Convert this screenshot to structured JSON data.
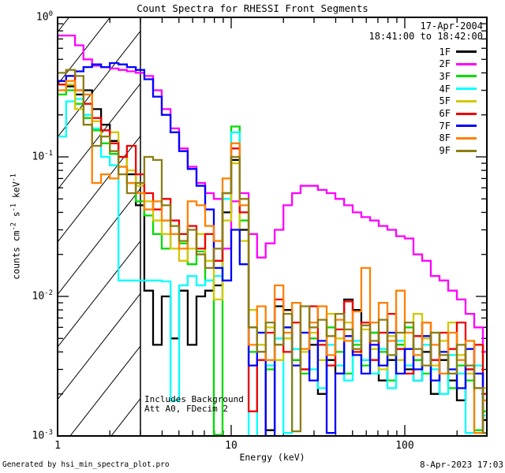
{
  "title": "Count Spectra for RHESSI Front Segments",
  "header": {
    "date_line1": "17-Apr-2004",
    "date_line2": "18:41:00 to 18:42:00"
  },
  "annotation": {
    "line1": "Includes Background",
    "line2": "Att A0, FDecim 2"
  },
  "footer": {
    "left": "Generated by hsi_min_spectra_plot.pro",
    "right": "8-Apr-2023 17:03"
  },
  "axes": {
    "xlabel": "Energy (keV)",
    "ylabel_parts": [
      {
        "text": "counts cm"
      },
      {
        "sup": "-2"
      },
      {
        "text": " s"
      },
      {
        "sup": "-1"
      },
      {
        "text": " keV"
      },
      {
        "sup": "-1"
      }
    ],
    "x_tick_labels": [
      "1",
      "10",
      "100"
    ],
    "y_tick_labels": [
      {
        "base": "10",
        "exp": "0"
      },
      {
        "base": "10",
        "exp": "-1"
      },
      {
        "base": "10",
        "exp": "-2"
      },
      {
        "base": "10",
        "exp": "-3"
      }
    ]
  },
  "chart_data": {
    "type": "line",
    "subtype": "log-log step histogram spectra",
    "title": "Count Spectra for RHESSI Front Segments",
    "xlabel": "Energy (keV)",
    "ylabel": "counts cm^-2 s^-1 keV^-1",
    "xlim": [
      1,
      297
    ],
    "ylim": [
      0.001,
      1
    ],
    "grid": false,
    "legend_position": "top-right",
    "x_major_ticks": [
      1,
      10,
      100
    ],
    "y_major_ticks": [
      1,
      0.1,
      0.01,
      0.001
    ],
    "hatched_region_keV": [
      1,
      3
    ],
    "energies_keV": [
      1.0,
      1.12,
      1.26,
      1.41,
      1.58,
      1.78,
      2.0,
      2.24,
      2.51,
      2.82,
      3.16,
      3.55,
      3.98,
      4.47,
      5.01,
      5.62,
      6.31,
      7.08,
      7.94,
      8.91,
      10.0,
      11.2,
      12.6,
      14.1,
      15.8,
      17.8,
      20.0,
      22.4,
      25.1,
      28.2,
      31.6,
      35.5,
      39.8,
      44.7,
      50.1,
      56.2,
      63.1,
      70.8,
      79.4,
      89.1,
      100.0,
      112.2,
      125.9,
      141.3,
      158.5,
      177.8,
      199.5,
      223.9,
      251.2,
      281.8
    ],
    "series": [
      {
        "name": "1F",
        "color": "#000000",
        "values": [
          0.35,
          0.32,
          0.28,
          0.3,
          0.22,
          0.17,
          0.13,
          0.1,
          0.075,
          0.045,
          0.011,
          0.0045,
          0.01,
          0.005,
          0.011,
          0.0045,
          0.01,
          0.011,
          0.012,
          0.04,
          0.095,
          0.03,
          0.006,
          0.004,
          0.0011,
          0.0085,
          0.008,
          0.0035,
          0.003,
          0.0045,
          0.002,
          0.0035,
          0.0028,
          0.0095,
          0.008,
          0.0035,
          0.0055,
          0.0025,
          0.0035,
          0.0045,
          0.003,
          0.0025,
          0.004,
          0.002,
          0.0035,
          0.0025,
          0.0018,
          0.003,
          0.0022,
          0.0013
        ]
      },
      {
        "name": "2F",
        "color": "#FF00FF",
        "values": [
          0.74,
          0.74,
          0.63,
          0.5,
          0.45,
          0.44,
          0.43,
          0.42,
          0.41,
          0.4,
          0.38,
          0.3,
          0.22,
          0.16,
          0.115,
          0.085,
          0.065,
          0.055,
          0.05,
          0.022,
          0.048,
          0.055,
          0.028,
          0.019,
          0.024,
          0.03,
          0.045,
          0.055,
          0.062,
          0.062,
          0.058,
          0.055,
          0.05,
          0.045,
          0.04,
          0.037,
          0.035,
          0.032,
          0.03,
          0.027,
          0.026,
          0.02,
          0.018,
          0.014,
          0.013,
          0.011,
          0.0095,
          0.0075,
          0.006,
          0.004
        ]
      },
      {
        "name": "3F",
        "color": "#00DC00",
        "values": [
          0.28,
          0.3,
          0.24,
          0.19,
          0.155,
          0.125,
          0.105,
          0.085,
          0.065,
          0.048,
          0.038,
          0.028,
          0.022,
          0.032,
          0.024,
          0.017,
          0.021,
          0.013,
          0.00102,
          0.055,
          0.165,
          0.035,
          0.004,
          0.0055,
          0.003,
          0.0045,
          0.006,
          0.0035,
          0.0028,
          0.005,
          0.0035,
          0.006,
          0.004,
          0.0028,
          0.0045,
          0.0032,
          0.0055,
          0.004,
          0.0025,
          0.0045,
          0.006,
          0.0035,
          0.0028,
          0.0055,
          0.004,
          0.0022,
          0.0032,
          0.0025,
          0.0011,
          0.0015
        ]
      },
      {
        "name": "4F",
        "color": "#00FFFF",
        "values": [
          0.14,
          0.25,
          0.26,
          0.2,
          0.16,
          0.1,
          0.087,
          0.013,
          0.013,
          0.013,
          0.013,
          0.013,
          0.0128,
          0.0018,
          0.012,
          0.014,
          0.012,
          0.013,
          0.014,
          0.05,
          0.15,
          0.04,
          0.001,
          0.0045,
          0.0032,
          0.005,
          0.00105,
          0.0042,
          0.0055,
          0.003,
          0.0022,
          0.0045,
          0.0032,
          0.0025,
          0.0048,
          0.0035,
          0.0028,
          0.0042,
          0.0022,
          0.0048,
          0.0032,
          0.0025,
          0.0045,
          0.003,
          0.002,
          0.0038,
          0.0028,
          0.00105,
          0.0032,
          0.0014
        ]
      },
      {
        "name": "5F",
        "color": "#D2C800",
        "values": [
          0.3,
          0.33,
          0.22,
          0.28,
          0.18,
          0.14,
          0.15,
          0.1,
          0.08,
          0.062,
          0.048,
          0.035,
          0.028,
          0.022,
          0.018,
          0.022,
          0.028,
          0.018,
          0.0095,
          0.035,
          0.09,
          0.025,
          0.008,
          0.0045,
          0.006,
          0.0035,
          0.005,
          0.0065,
          0.004,
          0.0055,
          0.0035,
          0.0075,
          0.005,
          0.0065,
          0.0038,
          0.0058,
          0.0042,
          0.003,
          0.0052,
          0.0035,
          0.0055,
          0.0075,
          0.005,
          0.0032,
          0.0048,
          0.0065,
          0.0038,
          0.0028,
          0.0045,
          0.0022
        ]
      },
      {
        "name": "6F",
        "color": "#EE0000",
        "values": [
          0.33,
          0.38,
          0.3,
          0.24,
          0.19,
          0.155,
          0.125,
          0.1,
          0.12,
          0.075,
          0.055,
          0.042,
          0.05,
          0.035,
          0.028,
          0.032,
          0.022,
          0.028,
          0.018,
          0.055,
          0.115,
          0.04,
          0.0015,
          0.0035,
          0.0055,
          0.0095,
          0.004,
          0.0065,
          0.003,
          0.0085,
          0.0045,
          0.0032,
          0.0058,
          0.0092,
          0.004,
          0.0065,
          0.0035,
          0.0055,
          0.0075,
          0.0042,
          0.0028,
          0.0052,
          0.0065,
          0.0035,
          0.0055,
          0.0042,
          0.0065,
          0.003,
          0.0045,
          0.002
        ]
      },
      {
        "name": "7F",
        "color": "#0000FF",
        "values": [
          0.35,
          0.38,
          0.41,
          0.44,
          0.46,
          0.44,
          0.47,
          0.46,
          0.44,
          0.42,
          0.36,
          0.27,
          0.2,
          0.15,
          0.11,
          0.082,
          0.062,
          0.042,
          0.016,
          0.013,
          0.03,
          0.017,
          0.0032,
          0.0055,
          0.001,
          0.0045,
          0.006,
          0.0032,
          0.0055,
          0.0025,
          0.0048,
          0.00105,
          0.0028,
          0.0052,
          0.0038,
          0.0028,
          0.0045,
          0.0032,
          0.0055,
          0.0028,
          0.0042,
          0.003,
          0.0052,
          0.0025,
          0.004,
          0.003,
          0.0022,
          0.0042,
          0.0028,
          0.00105
        ]
      },
      {
        "name": "8F",
        "color": "#FF8000",
        "values": [
          0.3,
          0.35,
          0.3,
          0.28,
          0.065,
          0.075,
          0.07,
          0.085,
          0.065,
          0.055,
          0.042,
          0.048,
          0.035,
          0.028,
          0.022,
          0.048,
          0.045,
          0.032,
          0.025,
          0.07,
          0.125,
          0.045,
          0.0045,
          0.0085,
          0.0035,
          0.012,
          0.0055,
          0.009,
          0.0042,
          0.0065,
          0.0085,
          0.0038,
          0.0068,
          0.0048,
          0.0078,
          0.016,
          0.0065,
          0.009,
          0.0048,
          0.011,
          0.0055,
          0.0038,
          0.0065,
          0.0045,
          0.0028,
          0.0055,
          0.0035,
          0.0048,
          0.00105,
          0.0018
        ]
      },
      {
        "name": "9F",
        "color": "#8C7D14",
        "values": [
          0.4,
          0.42,
          0.38,
          0.17,
          0.12,
          0.14,
          0.11,
          0.075,
          0.055,
          0.065,
          0.1,
          0.095,
          0.045,
          0.032,
          0.025,
          0.03,
          0.02,
          0.016,
          0.022,
          0.055,
          0.1,
          0.05,
          0.006,
          0.004,
          0.0065,
          0.0045,
          0.0075,
          0.00108,
          0.0085,
          0.006,
          0.0068,
          0.0052,
          0.0075,
          0.0058,
          0.0042,
          0.0062,
          0.0048,
          0.0068,
          0.0038,
          0.0055,
          0.0065,
          0.0042,
          0.0032,
          0.0055,
          0.0038,
          0.0028,
          0.0045,
          0.0032,
          0.0022,
          0.00105
        ]
      }
    ]
  }
}
